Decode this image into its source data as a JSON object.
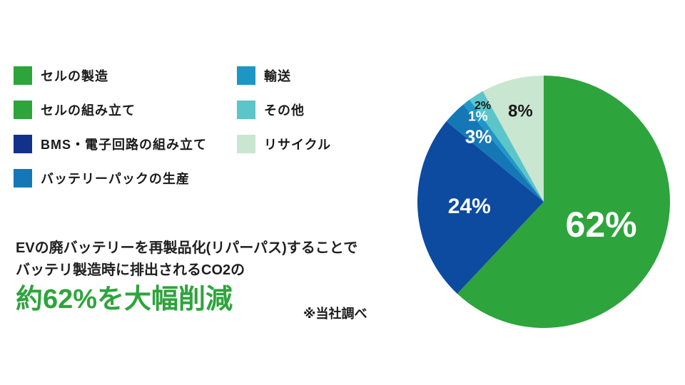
{
  "legend": {
    "columns": [
      {
        "items": [
          {
            "label": "セルの製造",
            "color": "#2EA43C"
          },
          {
            "label": "セルの組み立て",
            "color": "#2EA43C"
          },
          {
            "label": "BMS・電子回路の組み立て",
            "color": "#11318A"
          },
          {
            "label": "バッテリーパックの生産",
            "color": "#1577B6"
          }
        ]
      },
      {
        "items": [
          {
            "label": "輸送",
            "color": "#1E95C3"
          },
          {
            "label": "その他",
            "color": "#5BC5CA"
          },
          {
            "label": "リサイクル",
            "color": "#C9E6D0"
          }
        ]
      }
    ]
  },
  "chart_data": {
    "type": "pie",
    "direction": "clockwise",
    "start_angle_deg": 0,
    "total": 100,
    "legend_position": "left",
    "slices": [
      {
        "legend_label": "セルの製造 / セルの組み立て",
        "value": 62,
        "data_label": "62%",
        "color": "#2EA43C",
        "label_color": "#ffffff",
        "label_r": 0.49,
        "label_size": 50
      },
      {
        "legend_label": "BMS・電子回路の組み立て",
        "value": 24,
        "data_label": "24%",
        "color": "#0C4BA0",
        "label_color": "#ffffff",
        "label_r": 0.59,
        "label_size": 30
      },
      {
        "legend_label": "バッテリーパックの生産",
        "value": 3,
        "data_label": "3%",
        "color": "#1577B6",
        "label_color": "#ffffff",
        "label_r": 0.73,
        "label_size": 26
      },
      {
        "legend_label": "輸送",
        "value": 1,
        "data_label": "1%",
        "color": "#2196C8",
        "label_color": "#ffffff",
        "label_r": 0.85,
        "label_size": 19
      },
      {
        "legend_label": "その他",
        "value": 2,
        "data_label": "2%",
        "color": "#5BC5CA",
        "label_color": "#1a1a1a",
        "label_r": 0.9,
        "label_size": 16
      },
      {
        "legend_label": "リサイクル",
        "value": 8,
        "data_label": "8%",
        "color": "#C9E6D0",
        "label_color": "#1a1a1a",
        "label_r": 0.74,
        "label_size": 24
      }
    ]
  },
  "caption": {
    "line1": "EVの廃バッテリーを再製品化(リパーパス)することで",
    "line2": "バッテリ製造時に排出されるCO2の",
    "highlight": "約62%を大幅削減",
    "highlight_color": "#2EA43C",
    "footnote": "※当社調べ"
  }
}
